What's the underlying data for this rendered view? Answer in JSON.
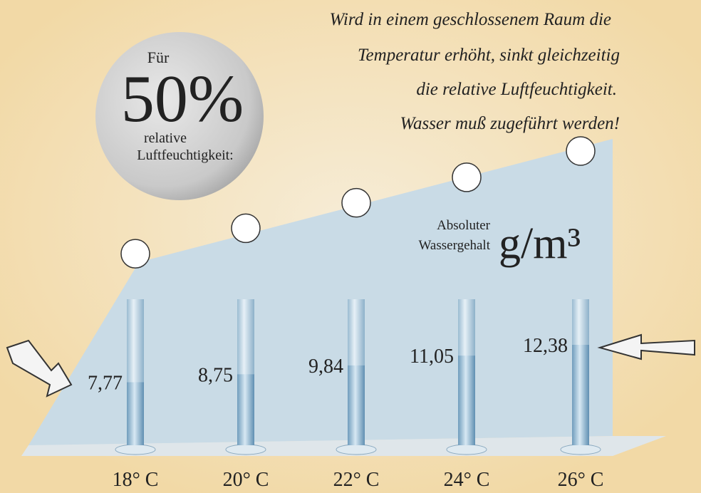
{
  "chart_data": {
    "type": "bar",
    "badge": {
      "line1": "Für",
      "big": "50%",
      "line2": "relative",
      "line3": "Luftfeuchtigkeit:"
    },
    "note": [
      "Wird in einem geschlossenem Raum die",
      "Temperatur erhöht, sinkt gleichzeitig",
      "die relative Luftfeuchtigkeit.",
      "Wasser muß zugeführt werden!"
    ],
    "unit_label": [
      "Absoluter",
      "Wassergehalt"
    ],
    "unit": "g/m³",
    "categories": [
      "18° C",
      "20° C",
      "22° C",
      "24° C",
      "26° C"
    ],
    "values": [
      7.77,
      8.75,
      9.84,
      11.05,
      12.38
    ],
    "value_labels": [
      "7,77",
      "8,75",
      "9,84",
      "11,05",
      "12,38"
    ],
    "ylim": [
      0,
      18
    ],
    "color": "#b9d3e6"
  }
}
